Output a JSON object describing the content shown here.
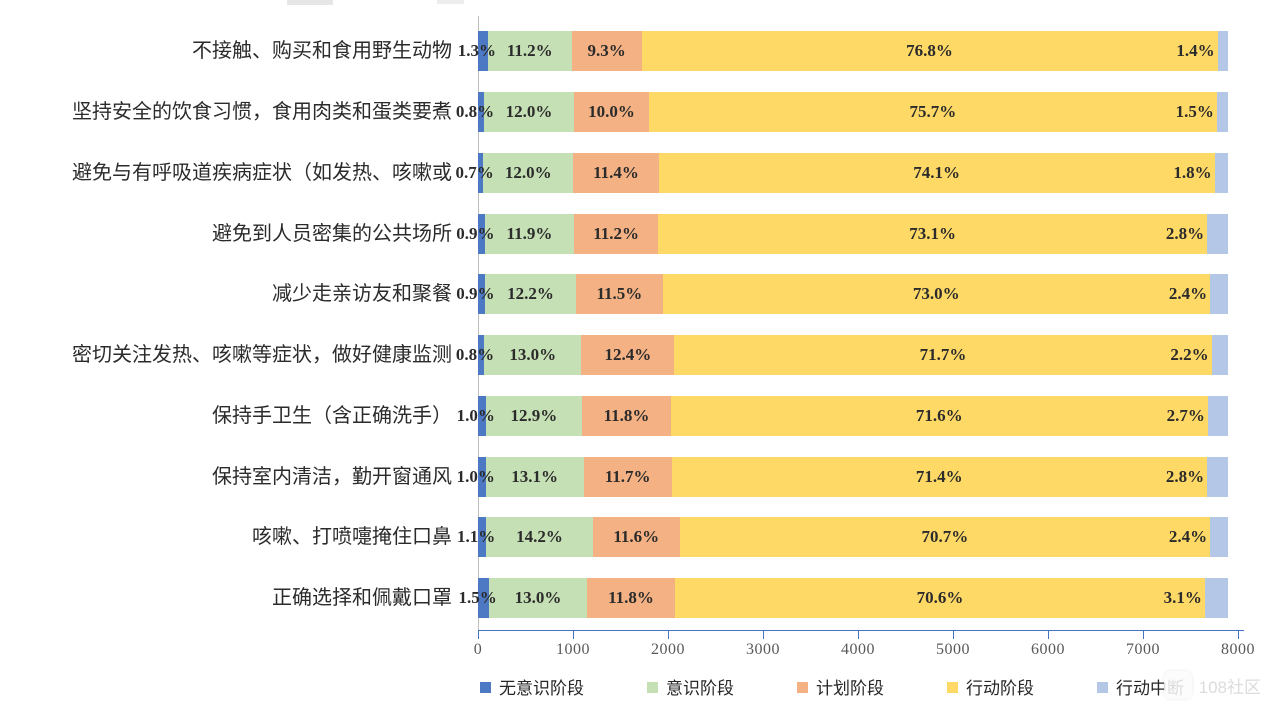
{
  "chart_data": {
    "type": "bar",
    "orientation": "horizontal",
    "stacked": true,
    "grid": false,
    "legend_position": "bottom",
    "bar_total_fraction": 0.987,
    "x_axis": {
      "min": 0,
      "max": 8000,
      "tick_step": 1000,
      "ticks": [
        "0",
        "1000",
        "2000",
        "3000",
        "4000",
        "5000",
        "6000",
        "7000",
        "8000"
      ]
    },
    "series_names": [
      "无意识阶段",
      "意识阶段",
      "计划阶段",
      "行动阶段",
      "行动中断"
    ],
    "series_colors": [
      "#4d79c4",
      "#c5e0b4",
      "#f4b183",
      "#ffd966",
      "#b4c7e7"
    ],
    "rows": [
      {
        "label": "不接触、购买和食用野生动物",
        "values": [
          1.3,
          11.2,
          9.3,
          76.8,
          1.4
        ],
        "seg_labels": [
          "1.3%",
          "11.2%",
          "9.3%",
          "76.8%",
          "1.4%"
        ]
      },
      {
        "label": "坚持安全的饮食习惯，食用肉类和蛋类要煮",
        "values": [
          0.8,
          12.0,
          10.0,
          75.7,
          1.5
        ],
        "seg_labels": [
          "0.8%",
          "12.0%",
          "10.0%",
          "75.7%",
          "1.5%"
        ]
      },
      {
        "label": "避免与有呼吸道疾病症状（如发热、咳嗽或",
        "values": [
          0.7,
          12.0,
          11.4,
          74.1,
          1.8
        ],
        "seg_labels": [
          "0.7%",
          "12.0%",
          "11.4%",
          "74.1%",
          "1.8%"
        ]
      },
      {
        "label": "避免到人员密集的公共场所",
        "values": [
          0.9,
          11.9,
          11.2,
          73.1,
          2.8
        ],
        "seg_labels": [
          "0.9%",
          "11.9%",
          "11.2%",
          "73.1%",
          "2.8%"
        ]
      },
      {
        "label": "减少走亲访友和聚餐",
        "values": [
          0.9,
          12.2,
          11.5,
          73.0,
          2.4
        ],
        "seg_labels": [
          "0.9%",
          "12.2%",
          "11.5%",
          "73.0%",
          "2.4%"
        ]
      },
      {
        "label": "密切关注发热、咳嗽等症状，做好健康监测",
        "values": [
          0.8,
          13.0,
          12.4,
          71.7,
          2.2
        ],
        "seg_labels": [
          "0.8%",
          "13.0%",
          "12.4%",
          "71.7%",
          "2.2%"
        ]
      },
      {
        "label": "保持手卫生（含正确洗手）",
        "values": [
          1.0,
          12.9,
          11.8,
          71.6,
          2.7
        ],
        "seg_labels": [
          "1.0%",
          "12.9%",
          "11.8%",
          "71.6%",
          "2.7%"
        ]
      },
      {
        "label": "保持室内清洁，勤开窗通风",
        "values": [
          1.0,
          13.1,
          11.7,
          71.4,
          2.8
        ],
        "seg_labels": [
          "1.0%",
          "13.1%",
          "11.7%",
          "71.4%",
          "2.8%"
        ]
      },
      {
        "label": "咳嗽、打喷嚏掩住口鼻",
        "values": [
          1.1,
          14.2,
          11.6,
          70.7,
          2.4
        ],
        "seg_labels": [
          "1.1%",
          "14.2%",
          "11.6%",
          "70.7%",
          "2.4%"
        ]
      },
      {
        "label": "正确选择和佩戴口罩",
        "values": [
          1.5,
          13.0,
          11.8,
          70.6,
          3.1
        ],
        "seg_labels": [
          "1.5%",
          "13.0%",
          "11.8%",
          "70.6%",
          "3.1%"
        ]
      }
    ],
    "legend": [
      {
        "label": "无意识阶段",
        "color": "#4d79c4"
      },
      {
        "label": "意识阶段",
        "color": "#c5e0b4"
      },
      {
        "label": "计划阶段",
        "color": "#f4b183"
      },
      {
        "label": "行动阶段",
        "color": "#ffd966"
      },
      {
        "label": "行动中断",
        "color": "#b4c7e7"
      }
    ],
    "axis_color": "#4472c4"
  },
  "watermark": {
    "text": "108社区"
  }
}
